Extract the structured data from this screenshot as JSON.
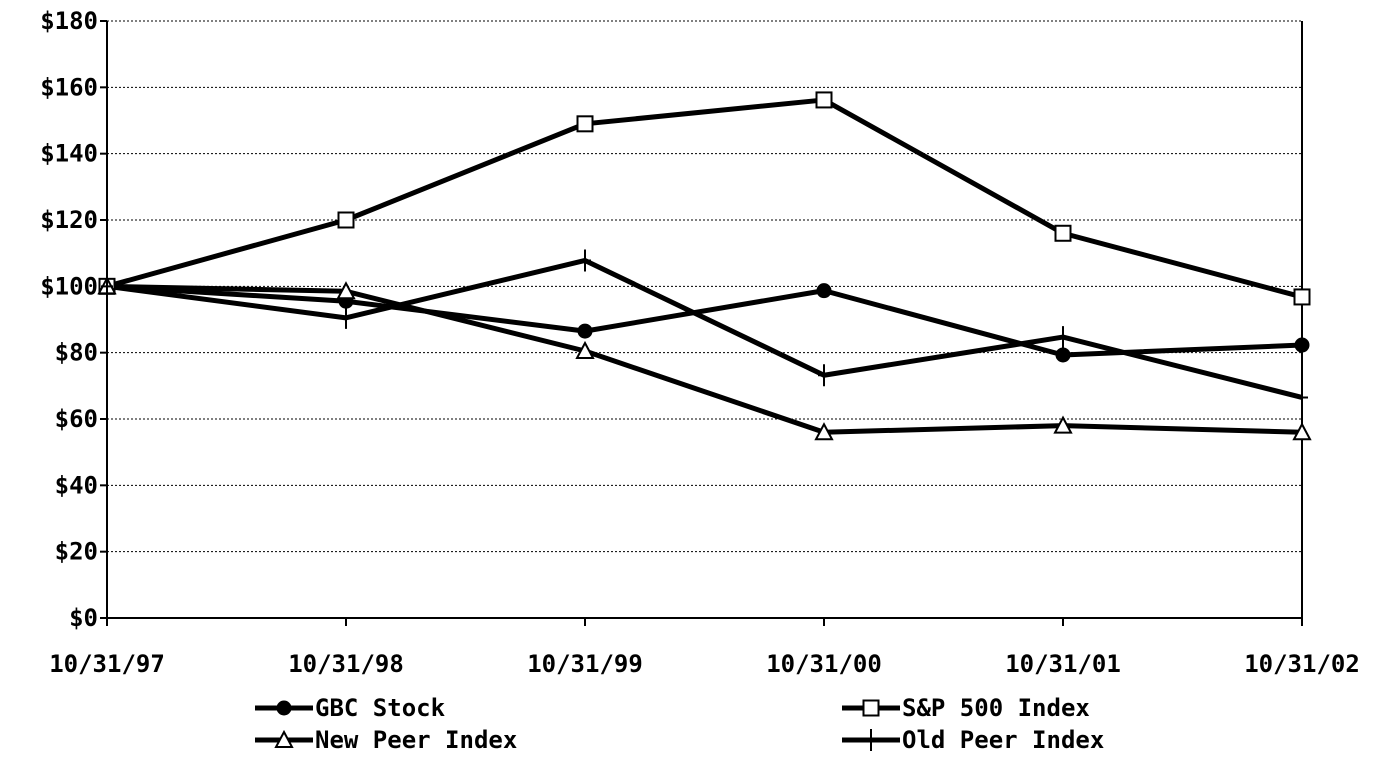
{
  "chart_data": {
    "type": "line",
    "title": "",
    "xlabel": "",
    "ylabel": "",
    "categories": [
      "10/31/97",
      "10/31/98",
      "10/31/99",
      "10/31/00",
      "10/31/01",
      "10/31/02"
    ],
    "ylim": [
      0,
      180
    ],
    "y_ticks": [
      0,
      20,
      40,
      60,
      80,
      100,
      120,
      140,
      160,
      180
    ],
    "y_tick_labels": [
      "$0",
      "$20",
      "$40",
      "$60",
      "$80",
      "$100",
      "$120",
      "$140",
      "$160",
      "$180"
    ],
    "grid": true,
    "legend_position": "bottom",
    "series": [
      {
        "name": "GBC  Stock",
        "marker": "circle",
        "values": [
          100,
          95.5,
          86.5,
          98.7,
          79.3,
          82.3
        ]
      },
      {
        "name": "S&P 500 Index",
        "marker": "square",
        "values": [
          100,
          120,
          149,
          156.2,
          116,
          96.8
        ]
      },
      {
        "name": "New Peer Index",
        "marker": "triangle",
        "values": [
          100,
          98.5,
          80.5,
          56,
          58,
          56
        ]
      },
      {
        "name": "Old Peer Index",
        "marker": "cross",
        "values": [
          100,
          90.5,
          107.8,
          73.2,
          84.7,
          66.5
        ]
      }
    ],
    "colors": {
      "line": "#000000",
      "marker_fill_open": "#ffffff"
    }
  }
}
